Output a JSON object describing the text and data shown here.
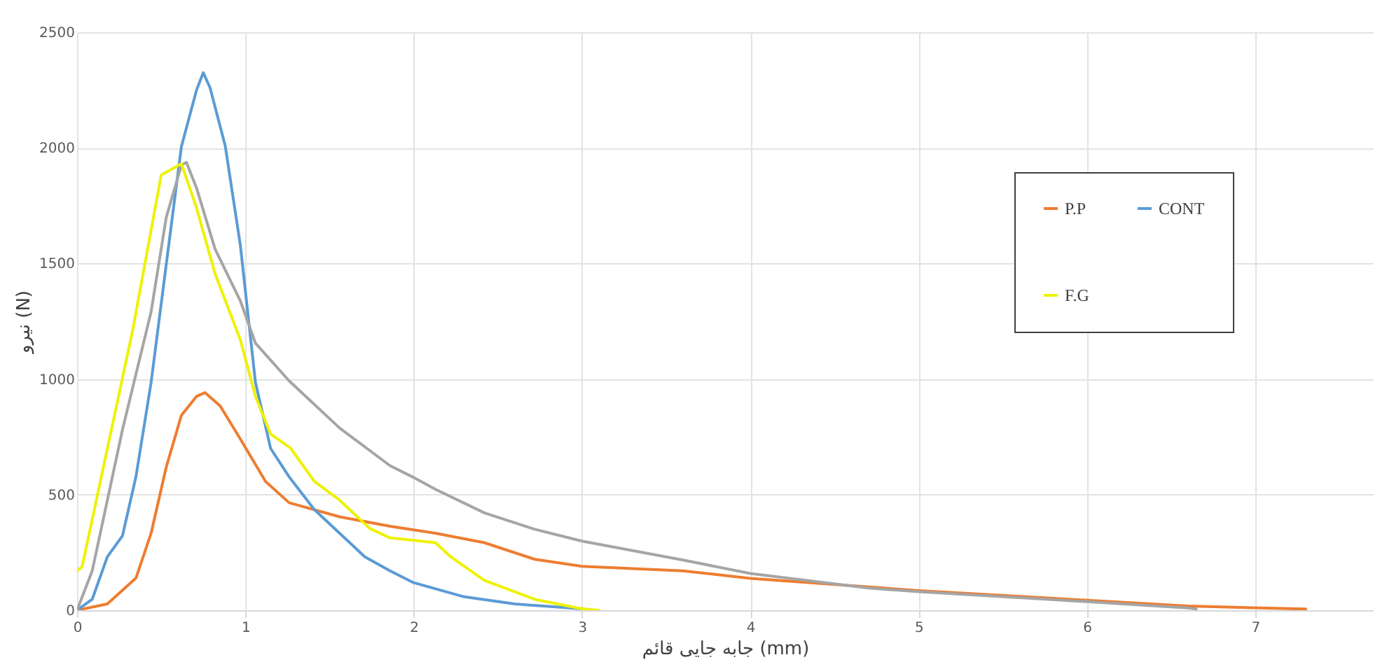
{
  "chart_data": {
    "type": "line",
    "xlabel": "جابه جایی قائم (mm)",
    "ylabel": "نیرو (N)",
    "xlim": [
      0,
      7.7
    ],
    "xticks": [
      0,
      1,
      2,
      3,
      4,
      5,
      6,
      7
    ],
    "ylim": [
      0,
      2500
    ],
    "yticks": [
      0,
      500,
      1000,
      1500,
      2000,
      2500
    ],
    "grid": true,
    "legend": "top right",
    "marker": "none",
    "line_style": "solid",
    "series": [
      {
        "name": "P.P",
        "color": "#ed7d31",
        "x": [
          0,
          0.18,
          0.35,
          0.44,
          0.53,
          0.62,
          0.71,
          0.76,
          0.85,
          0.97,
          1.12,
          1.26,
          1.56,
          1.86,
          2.13,
          2.42,
          2.72,
          3.0,
          3.6,
          4.0,
          5.0,
          6.0,
          6.6,
          7.3
        ],
        "values": [
          0,
          27,
          139,
          333,
          619,
          843,
          925,
          941,
          884,
          741,
          557,
          465,
          404,
          363,
          333,
          292,
          220,
          190,
          170,
          138,
          85,
          43,
          18,
          5
        ]
      },
      {
        "name": "CONT",
        "color": "#5b9bd5",
        "x": [
          0,
          0.09,
          0.18,
          0.27,
          0.35,
          0.44,
          0.53,
          0.62,
          0.71,
          0.75,
          0.79,
          0.88,
          0.97,
          1.06,
          1.15,
          1.26,
          1.41,
          1.56,
          1.71,
          1.86,
          2.0,
          2.3,
          2.6,
          3.0,
          3.05
        ],
        "values": [
          0,
          47,
          231,
          322,
          578,
          985,
          1496,
          2005,
          2250,
          2325,
          2260,
          2010,
          1580,
          985,
          700,
          577,
          435,
          333,
          231,
          170,
          119,
          58,
          27,
          6,
          0
        ]
      },
      {
        "color": "#a5a5a5",
        "x": [
          0,
          0.09,
          0.27,
          0.44,
          0.53,
          0.62,
          0.65,
          0.71,
          0.82,
          0.97,
          1.06,
          1.26,
          1.56,
          1.86,
          2.0,
          2.13,
          2.42,
          2.72,
          3.0,
          3.6,
          4.0,
          4.7,
          5.0,
          6.0,
          6.6,
          6.65
        ],
        "values": [
          0,
          170,
          781,
          1291,
          1699,
          1925,
          1937,
          1826,
          1562,
          1338,
          1155,
          992,
          788,
          625,
          574,
          523,
          421,
          350,
          299,
          217,
          159,
          96,
          80,
          37,
          10,
          5
        ]
      },
      {
        "name": "F.G",
        "color": "#eef200",
        "x": [
          0,
          0.03,
          0.33,
          0.5,
          0.62,
          0.71,
          0.82,
          0.97,
          1.06,
          1.15,
          1.27,
          1.41,
          1.56,
          1.74,
          1.86,
          2.13,
          2.22,
          2.42,
          2.72,
          3.0,
          3.1
        ],
        "values": [
          170,
          188,
          1209,
          1882,
          1931,
          1740,
          1456,
          1170,
          925,
          762,
          700,
          557,
          476,
          353,
          313,
          292,
          231,
          129,
          47,
          6,
          0
        ]
      }
    ]
  }
}
